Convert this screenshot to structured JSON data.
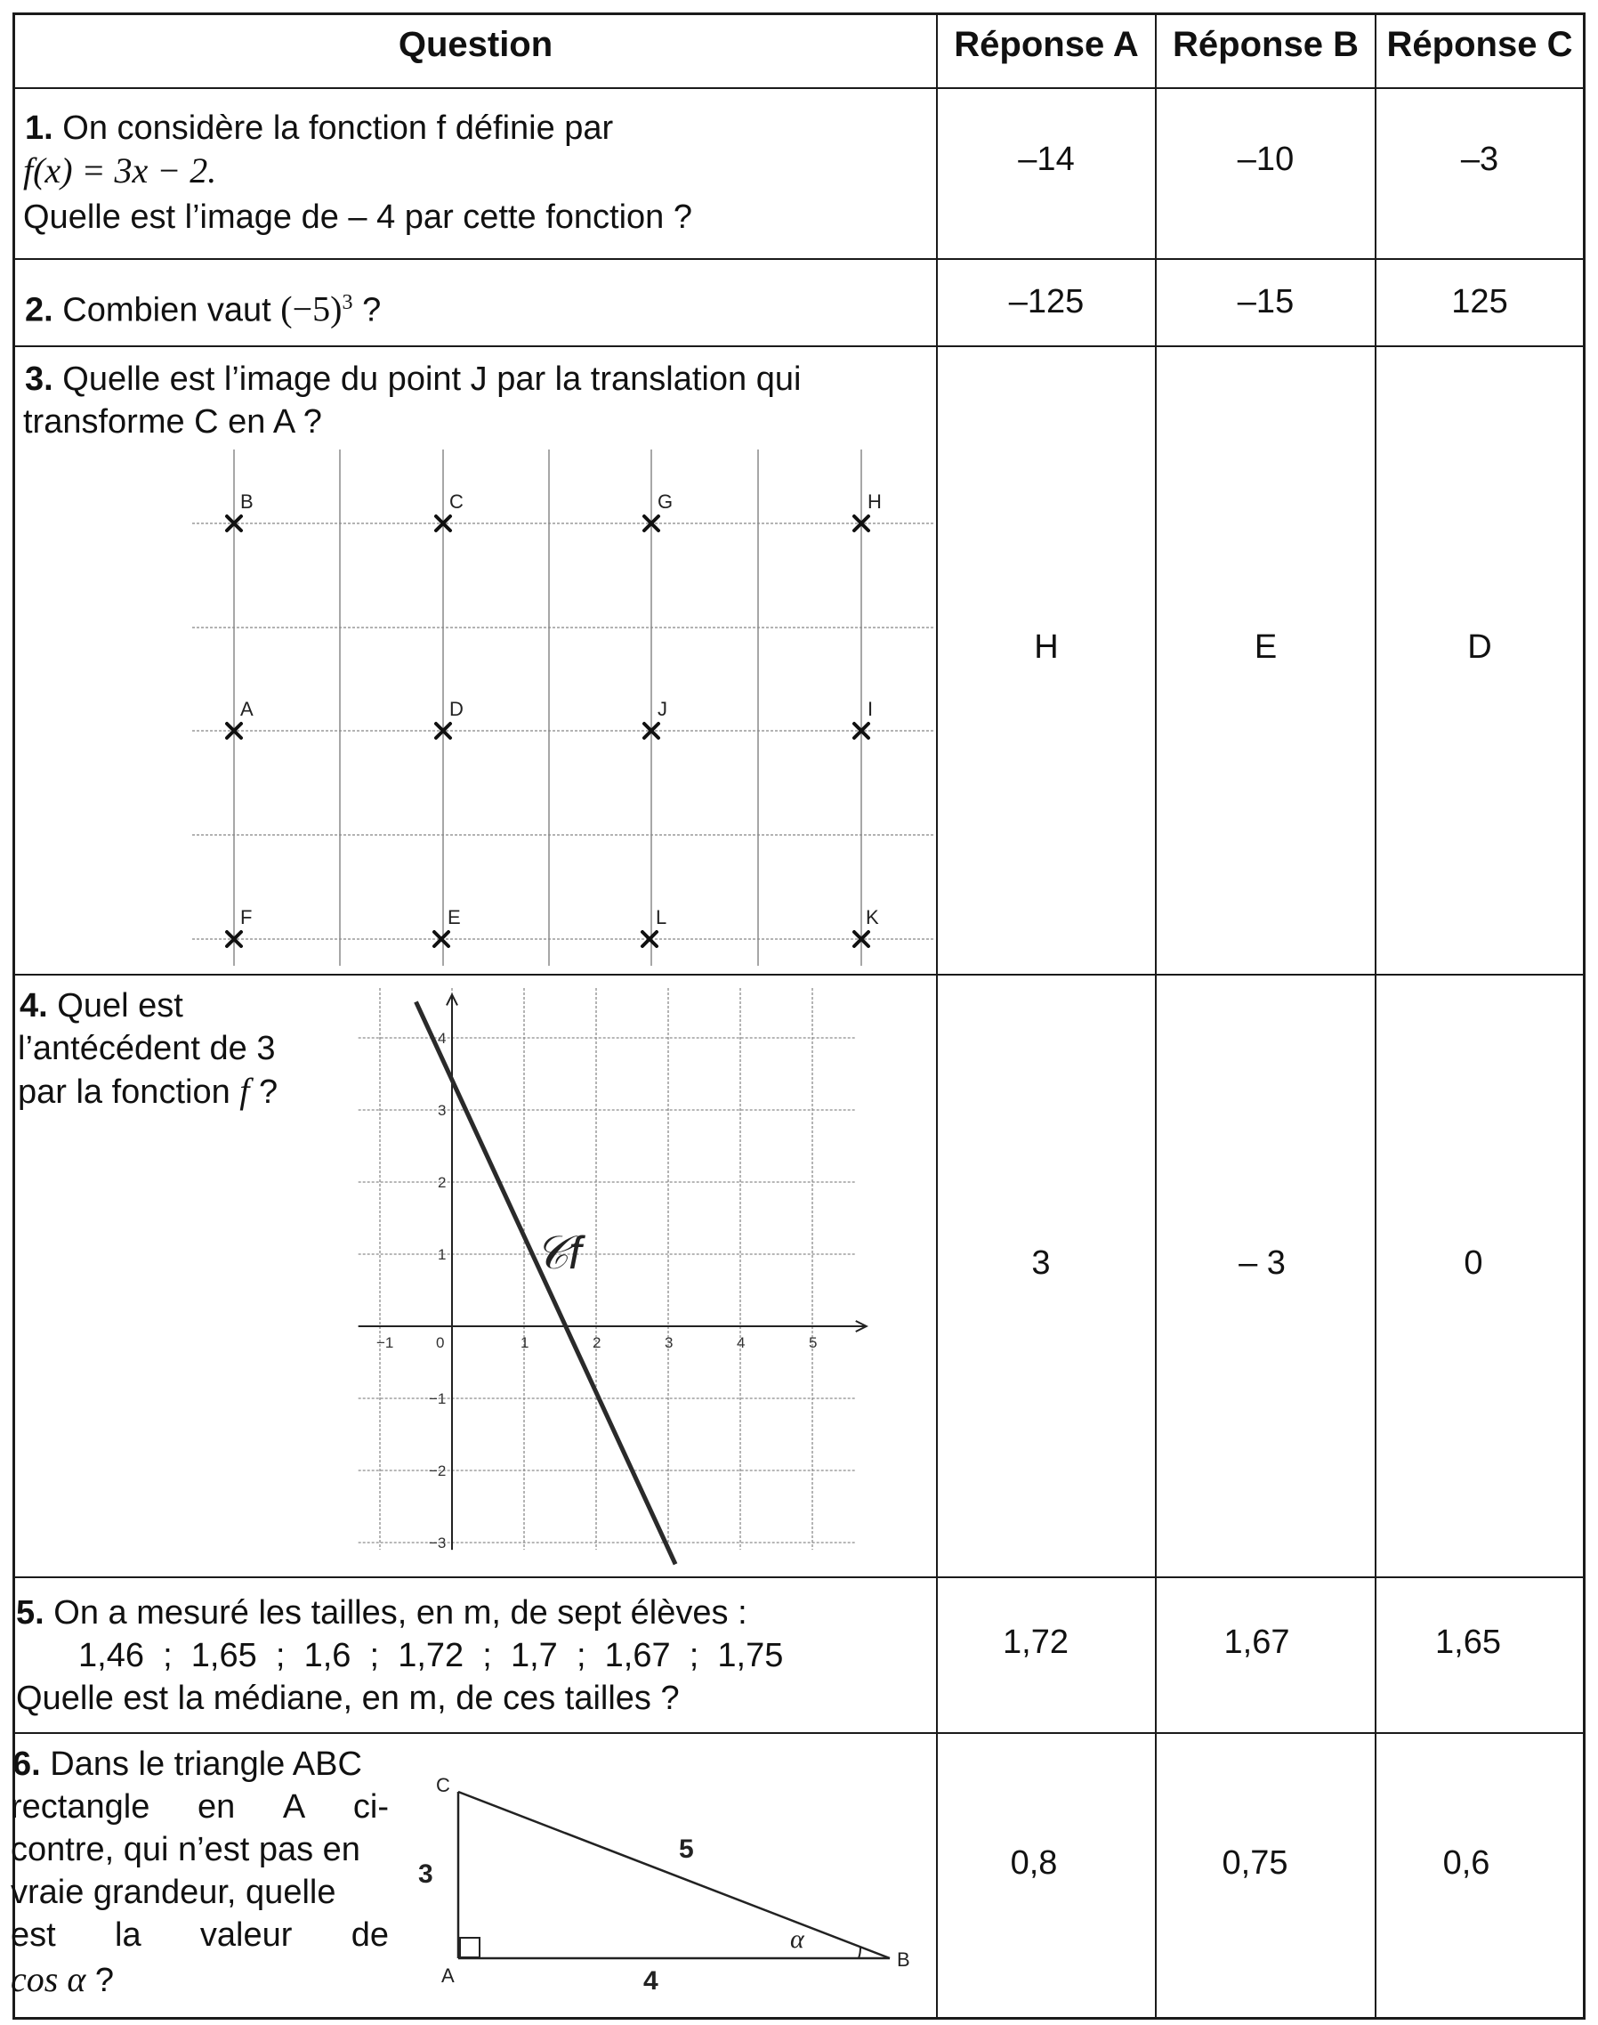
{
  "headers": {
    "question": "Question",
    "a": "Réponse A",
    "b": "Réponse B",
    "c": "Réponse C"
  },
  "q1": {
    "num": "1.",
    "line1": "On considère la fonction f définie par",
    "formula": "f(x) = 3x − 2.",
    "line3": "Quelle est l’image de – 4 par cette fonction ?",
    "answers": [
      "–14",
      "–10",
      "–3"
    ]
  },
  "q2": {
    "num": "2.",
    "text": "Combien vaut",
    "expr": "(−5)",
    "exp": "3",
    "tail": "?",
    "answers": [
      "–125",
      "–15",
      "125"
    ]
  },
  "q3": {
    "num": "3.",
    "line1": "Quelle est l’image du point J par la translation qui",
    "line2": "transforme C en A ?",
    "points": {
      "B": "B",
      "C": "C",
      "G": "G",
      "H": "H",
      "A": "A",
      "D": "D",
      "J": "J",
      "I": "I",
      "F": "F",
      "E": "E",
      "L": "L",
      "K": "K"
    },
    "answers": [
      "H",
      "E",
      "D"
    ]
  },
  "q4": {
    "num": "4.",
    "line1": "Quel est",
    "line2": "l’antécédent de 3",
    "line3a": "par la fonction",
    "line3f": "f",
    "line3b": "?",
    "curve_label": "𝒞f",
    "x_ticks": [
      "−1",
      "0",
      "1",
      "2",
      "3",
      "4",
      "5"
    ],
    "y_ticks": [
      "4",
      "3",
      "2",
      "1",
      "−1",
      "−2",
      "−3"
    ],
    "answers": [
      "3",
      "– 3",
      "0"
    ]
  },
  "chart_data": {
    "type": "line",
    "series": [
      {
        "x": [
          -0.5,
          3.1
        ],
        "y": [
          4.5,
          -3.3
        ]
      }
    ],
    "xlim": [
      -1,
      5.5
    ],
    "ylim": [
      -3,
      4.5
    ],
    "x_ticks": [
      -1,
      0,
      1,
      2,
      3,
      4,
      5
    ],
    "y_ticks": [
      -3,
      -2,
      -1,
      1,
      2,
      3,
      4
    ],
    "grid": true
  },
  "q5": {
    "num": "5.",
    "line1": "On a mesuré les tailles, en m, de sept élèves :",
    "values": [
      "1,46",
      "1,65",
      "1,6",
      "1,72",
      "1,7",
      "1,67",
      "1,75"
    ],
    "sep": ";",
    "line3": "Quelle est la médiane, en m, de ces tailles ?",
    "answers": [
      "1,72",
      "1,67",
      "1,65"
    ]
  },
  "q6": {
    "num": "6.",
    "line1": "Dans le triangle ABC",
    "line2": [
      "rectangle",
      "en",
      "A",
      "ci-"
    ],
    "line3": "contre, qui n’est pas en",
    "line4": "vraie grandeur, quelle",
    "line5": [
      "est",
      "la",
      "valeur",
      "de"
    ],
    "cos": "cos α",
    "tail": "?",
    "labels": {
      "A": "A",
      "B": "B",
      "C": "C",
      "side_ac": "3",
      "side_ab": "4",
      "side_bc": "5",
      "angle": "α"
    },
    "answers": [
      "0,8",
      "0,75",
      "0,6"
    ]
  }
}
